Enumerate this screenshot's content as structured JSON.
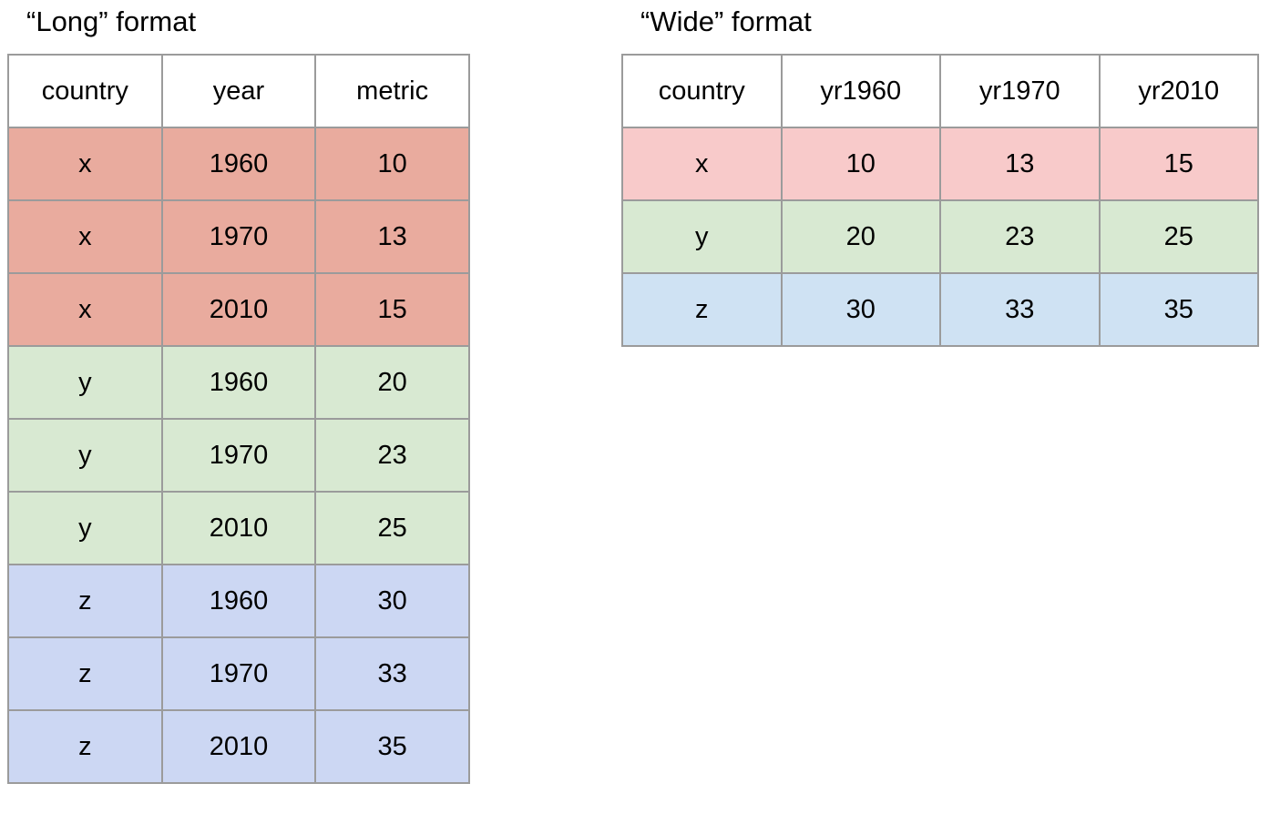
{
  "colors": {
    "long_x": "#e9ab9e",
    "long_y": "#d8e9d2",
    "long_z": "#ccd7f3",
    "wide_x": "#f8caca",
    "wide_y": "#d8e9d2",
    "wide_z": "#cfe2f3",
    "grid_border": "#9b9b9b",
    "text": "#000000",
    "background": "#ffffff"
  },
  "chart_data": [
    {
      "type": "table",
      "title": "“Long” format",
      "columns": [
        "country",
        "year",
        "metric"
      ],
      "rows": [
        [
          "x",
          "1960",
          "10"
        ],
        [
          "x",
          "1970",
          "13"
        ],
        [
          "x",
          "2010",
          "15"
        ],
        [
          "y",
          "1960",
          "20"
        ],
        [
          "y",
          "1970",
          "23"
        ],
        [
          "y",
          "2010",
          "25"
        ],
        [
          "z",
          "1960",
          "30"
        ],
        [
          "z",
          "1970",
          "33"
        ],
        [
          "z",
          "2010",
          "35"
        ]
      ],
      "row_group_colors": {
        "x": "#e9ab9e",
        "y": "#d8e9d2",
        "z": "#ccd7f3"
      }
    },
    {
      "type": "table",
      "title": "“Wide” format",
      "columns": [
        "country",
        "yr1960",
        "yr1970",
        "yr2010"
      ],
      "rows": [
        [
          "x",
          "10",
          "13",
          "15"
        ],
        [
          "y",
          "20",
          "23",
          "25"
        ],
        [
          "z",
          "30",
          "33",
          "35"
        ]
      ],
      "row_group_colors": {
        "x": "#f8caca",
        "y": "#d8e9d2",
        "z": "#cfe2f3"
      }
    }
  ]
}
